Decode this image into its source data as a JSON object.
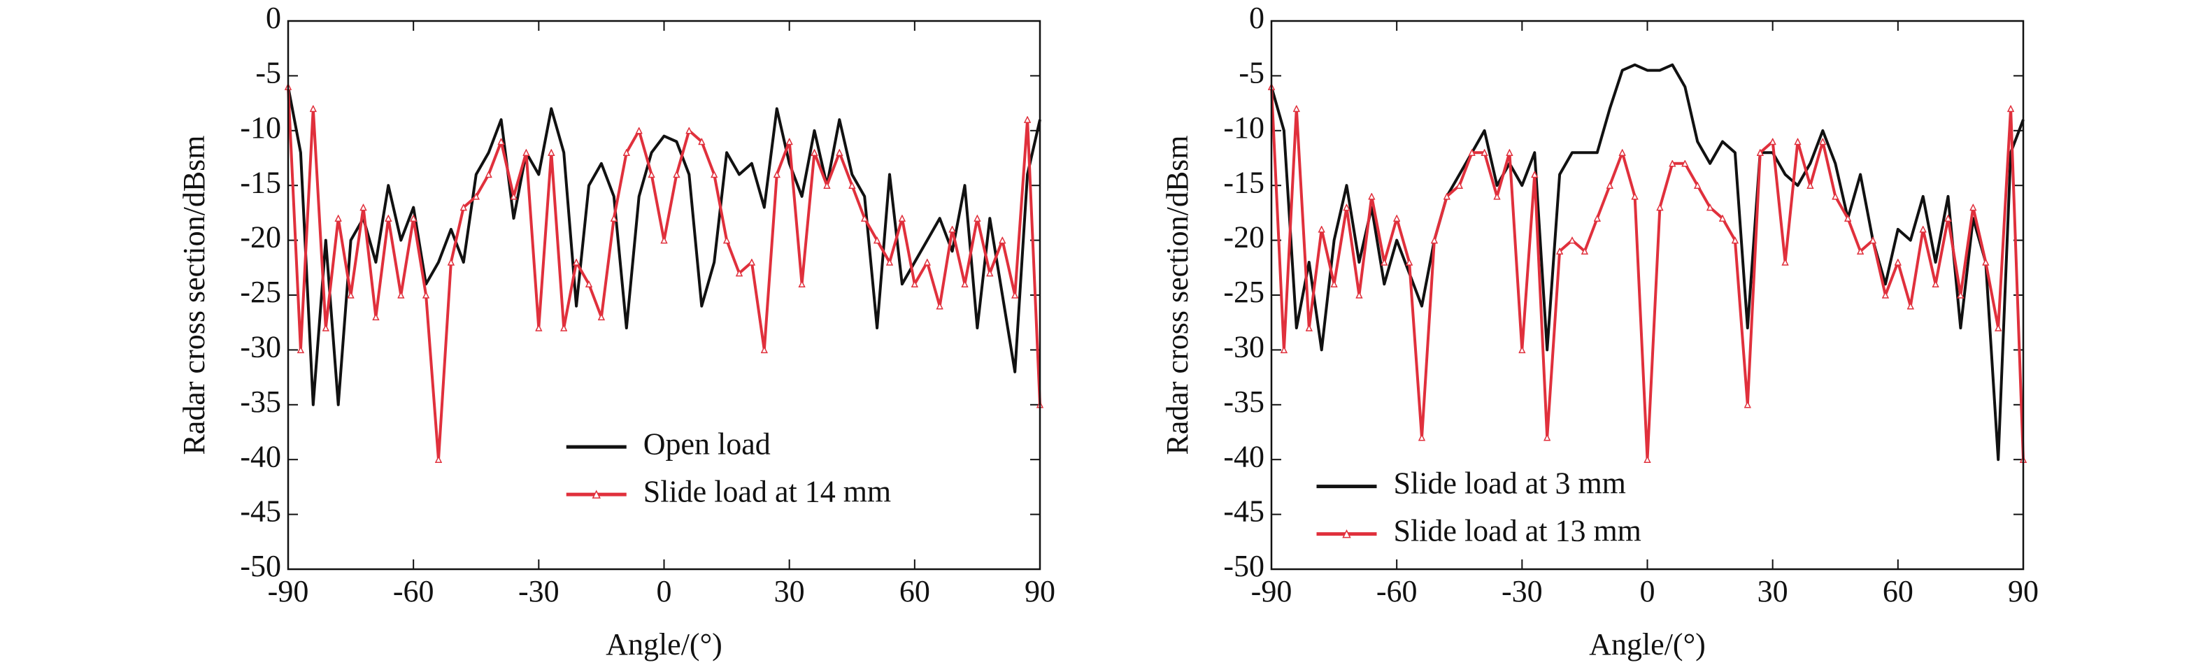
{
  "chart_data": [
    {
      "type": "line",
      "xlabel": "Angle/(°)",
      "ylabel": "Radar cross section/dBsm",
      "x": [
        -90,
        -87,
        -84,
        -81,
        -78,
        -75,
        -72,
        -69,
        -66,
        -63,
        -60,
        -57,
        -54,
        -51,
        -48,
        -45,
        -42,
        -39,
        -36,
        -33,
        -30,
        -27,
        -24,
        -21,
        -18,
        -15,
        -12,
        -9,
        -6,
        -3,
        0,
        3,
        6,
        9,
        12,
        15,
        18,
        21,
        24,
        27,
        30,
        33,
        36,
        39,
        42,
        45,
        48,
        51,
        54,
        57,
        60,
        63,
        66,
        69,
        72,
        75,
        78,
        81,
        84,
        87,
        90
      ],
      "xlim": [
        -90,
        90
      ],
      "xticks": [
        -90,
        -60,
        -30,
        0,
        30,
        60,
        90
      ],
      "ylim": [
        -50,
        0
      ],
      "yticks": [
        0,
        -5,
        -10,
        -15,
        -20,
        -25,
        -30,
        -35,
        -40,
        -45,
        -50
      ],
      "legend": "lower center",
      "series": [
        {
          "name": "Open load",
          "color": "#111111",
          "values": [
            -6,
            -12,
            -35,
            -20,
            -35,
            -20,
            -18,
            -22,
            -15,
            -20,
            -17,
            -24,
            -22,
            -19,
            -22,
            -14,
            -12,
            -9,
            -18,
            -12,
            -14,
            -8,
            -12,
            -26,
            -15,
            -13,
            -16,
            -28,
            -16,
            -12,
            -10.5,
            -11,
            -14,
            -26,
            -22,
            -12,
            -14,
            -13,
            -17,
            -8,
            -13,
            -16,
            -10,
            -15,
            -9,
            -14,
            -16,
            -28,
            -14,
            -24,
            -22,
            -20,
            -18,
            -21,
            -15,
            -28,
            -18,
            -25,
            -32,
            -14,
            -9
          ]
        },
        {
          "name": "Slide load at 14 mm",
          "color": "#e0303c",
          "values": [
            -6,
            -30,
            -8,
            -28,
            -18,
            -25,
            -17,
            -27,
            -18,
            -25,
            -18,
            -25,
            -40,
            -22,
            -17,
            -16,
            -14,
            -11,
            -16,
            -12,
            -28,
            -12,
            -28,
            -22,
            -24,
            -27,
            -18,
            -12,
            -10,
            -14,
            -20,
            -14,
            -10,
            -11,
            -14,
            -20,
            -23,
            -22,
            -30,
            -14,
            -11,
            -24,
            -12,
            -15,
            -12,
            -15,
            -18,
            -20,
            -22,
            -18,
            -24,
            -22,
            -26,
            -19,
            -24,
            -18,
            -23,
            -20,
            -25,
            -9,
            -35
          ]
        }
      ]
    },
    {
      "type": "line",
      "xlabel": "Angle/(°)",
      "ylabel": "Radar cross section/dBsm",
      "x": [
        -90,
        -87,
        -84,
        -81,
        -78,
        -75,
        -72,
        -69,
        -66,
        -63,
        -60,
        -57,
        -54,
        -51,
        -48,
        -45,
        -42,
        -39,
        -36,
        -33,
        -30,
        -27,
        -24,
        -21,
        -18,
        -15,
        -12,
        -9,
        -6,
        -3,
        0,
        3,
        6,
        9,
        12,
        15,
        18,
        21,
        24,
        27,
        30,
        33,
        36,
        39,
        42,
        45,
        48,
        51,
        54,
        57,
        60,
        63,
        66,
        69,
        72,
        75,
        78,
        81,
        84,
        87,
        90
      ],
      "xlim": [
        -90,
        90
      ],
      "xticks": [
        -90,
        -60,
        -30,
        0,
        30,
        60,
        90
      ],
      "ylim": [
        -50,
        0
      ],
      "yticks": [
        0,
        -5,
        -10,
        -15,
        -20,
        -25,
        -30,
        -35,
        -40,
        -45,
        -50
      ],
      "legend": "lower left",
      "series": [
        {
          "name": "Slide load at 3 mm",
          "color": "#111111",
          "values": [
            -6,
            -10,
            -28,
            -22,
            -30,
            -20,
            -15,
            -22,
            -17,
            -24,
            -20,
            -23,
            -26,
            -20,
            -16,
            -14,
            -12,
            -10,
            -15,
            -13,
            -15,
            -12,
            -30,
            -14,
            -12,
            -12,
            -12,
            -8,
            -4.5,
            -4,
            -4.5,
            -4.5,
            -4,
            -6,
            -11,
            -13,
            -11,
            -12,
            -28,
            -12,
            -12,
            -14,
            -15,
            -13,
            -10,
            -13,
            -18,
            -14,
            -20,
            -24,
            -19,
            -20,
            -16,
            -22,
            -16,
            -28,
            -18,
            -22,
            -40,
            -12,
            -9
          ]
        },
        {
          "name": "Slide load at 13 mm",
          "color": "#e0303c",
          "values": [
            -6,
            -30,
            -8,
            -28,
            -19,
            -24,
            -17,
            -25,
            -16,
            -22,
            -18,
            -22,
            -38,
            -20,
            -16,
            -15,
            -12,
            -12,
            -16,
            -12,
            -30,
            -14,
            -38,
            -21,
            -20,
            -21,
            -18,
            -15,
            -12,
            -16,
            -40,
            -17,
            -13,
            -13,
            -15,
            -17,
            -18,
            -20,
            -35,
            -12,
            -11,
            -22,
            -11,
            -15,
            -11,
            -16,
            -18,
            -21,
            -20,
            -25,
            -22,
            -26,
            -19,
            -24,
            -18,
            -25,
            -17,
            -22,
            -28,
            -8,
            -40
          ]
        }
      ]
    }
  ]
}
